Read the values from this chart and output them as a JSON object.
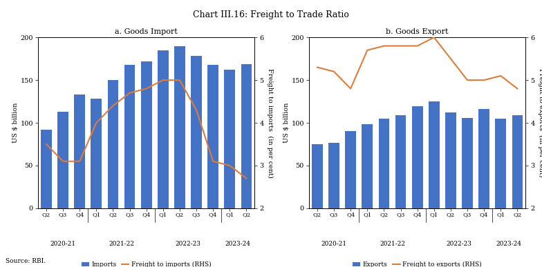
{
  "title": "Chart III.16: Freight to Trade Ratio",
  "panel_a_title": "a. Goods Import",
  "panel_b_title": "b. Goods Export",
  "x_labels": [
    "Q2",
    "Q3",
    "Q4",
    "Q1",
    "Q2",
    "Q3",
    "Q4",
    "Q1",
    "Q2",
    "Q3",
    "Q4",
    "Q1",
    "Q2"
  ],
  "year_groups": [
    {
      "label": "2020-21",
      "start": 0,
      "end": 2
    },
    {
      "label": "2021-22",
      "start": 3,
      "end": 6
    },
    {
      "label": "2022-23",
      "start": 7,
      "end": 10
    },
    {
      "label": "2023-24",
      "start": 11,
      "end": 12
    }
  ],
  "imports": [
    92,
    113,
    133,
    128,
    150,
    168,
    172,
    185,
    190,
    178,
    168,
    162,
    169
  ],
  "freight_to_imports": [
    3.5,
    3.1,
    3.1,
    4.0,
    4.4,
    4.7,
    4.8,
    5.0,
    5.0,
    4.3,
    3.1,
    3.0,
    2.7
  ],
  "exports": [
    75,
    77,
    90,
    98,
    105,
    109,
    119,
    125,
    112,
    106,
    116,
    105,
    109
  ],
  "freight_to_exports": [
    5.3,
    5.2,
    4.8,
    5.7,
    5.8,
    5.8,
    5.8,
    6.0,
    5.5,
    5.0,
    5.0,
    5.1,
    4.8
  ],
  "bar_color": "#4472C4",
  "line_color": "#E07B39",
  "ylabel_left": "US $ billion",
  "ylabel_right_import": "Freight to imports  (in per cent)",
  "ylabel_right_export": "Freight to exports  (in per cent)",
  "ylim_left": [
    0,
    200
  ],
  "ylim_right": [
    2,
    6
  ],
  "yticks_left": [
    0,
    50,
    100,
    150,
    200
  ],
  "yticks_right": [
    2,
    3,
    4,
    5,
    6
  ],
  "legend_a": [
    "Imports",
    "Freight to imports (RHS)"
  ],
  "legend_b": [
    "Exports",
    "Freight to exports (RHS)"
  ],
  "source": "Source: RBI.",
  "group_boundaries": [
    2.5,
    6.5,
    10.5
  ]
}
